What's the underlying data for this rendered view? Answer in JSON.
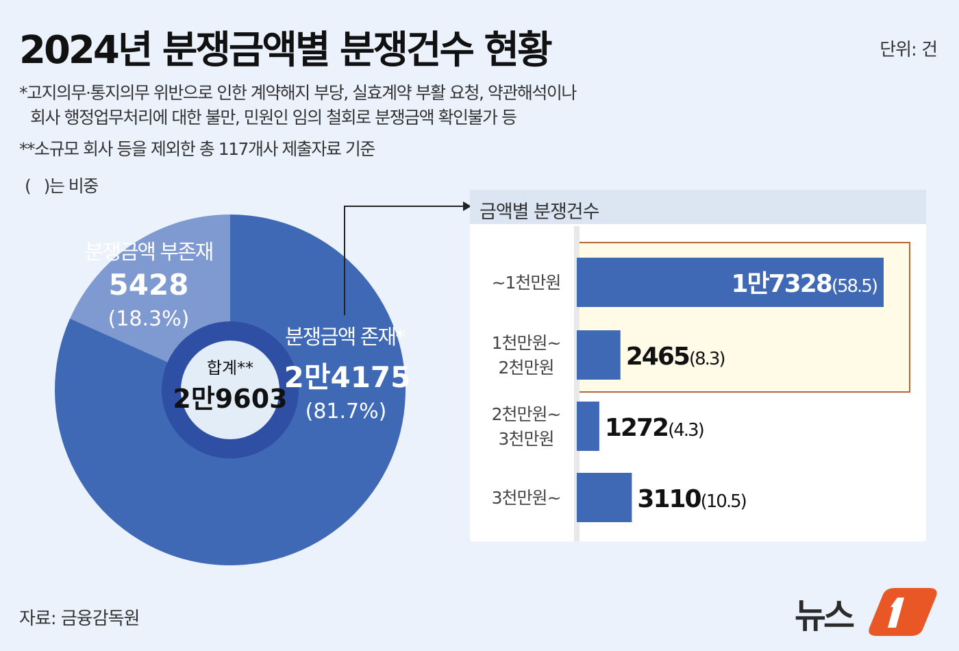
{
  "title": "2024년 분쟁금액별 분쟁건수 현황",
  "unit": "단위: 건",
  "notes": [
    "*고지의무·통지의무 위반으로 인한 계약해지 부당, 실효계약 부활 요청, 약관해석이나",
    "회사 행정업무처리에 대한 불만, 민원인 임의 철회로 분쟁금액 확인불가 등",
    "**소규모 회사 등을 제외한 총 117개사 제출자료 기준",
    "(   )는 비중"
  ],
  "source": "자료: 금융감독원",
  "logo": "뉴스1",
  "colors": {
    "main": "#3f69b5",
    "light": "#7f99d1",
    "ring": "#2e4fa3",
    "hole": "#e3edf8",
    "highlight_bg": "#fffbe6",
    "highlight_border": "#b5653a",
    "logo": "#ea5726"
  },
  "chart_data": [
    {
      "type": "pie",
      "total_label": "합계**",
      "total": "2만9603",
      "slices": [
        {
          "name": "분쟁금액 부존재",
          "value": 5428,
          "value_label": "5428",
          "pct_label": "(18.3%)",
          "percent": 18.3
        },
        {
          "name": "분쟁금액 존재*",
          "value": 24175,
          "value_label": "2만4175",
          "pct_label": "(81.7%)",
          "percent": 81.7
        }
      ]
    },
    {
      "type": "bar",
      "orientation": "horizontal",
      "title": "금액별 분쟁건수",
      "categories": [
        "~1천만원",
        "1천만원~\n2천만원",
        "2천만원~\n3천만원",
        "3천만원~"
      ],
      "values": [
        17328,
        2465,
        1272,
        3110
      ],
      "value_labels": [
        "1만7328",
        "2465",
        "1272",
        "3110"
      ],
      "pct_labels": [
        "(58.5)",
        "(8.3)",
        "(4.3)",
        "(10.5)"
      ],
      "highlighted": [
        "~1천만원",
        "1천만원~\n2천만원"
      ]
    }
  ]
}
